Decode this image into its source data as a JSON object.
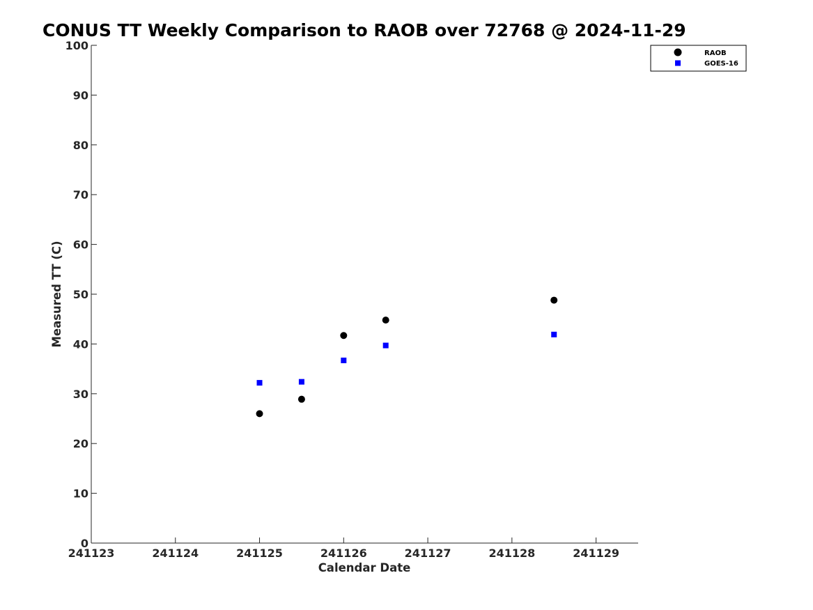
{
  "chart_data": {
    "type": "scatter",
    "title": "CONUS TT Weekly Comparison to RAOB over 72768 @ 2024-11-29",
    "xlabel": "Calendar Date",
    "ylabel": "Measured TT (C)",
    "x_ticks": [
      "241123",
      "241124",
      "241125",
      "241126",
      "241127",
      "241128",
      "241129"
    ],
    "x_tick_values": [
      0,
      1,
      2,
      3,
      4,
      5,
      6
    ],
    "xlim": [
      0,
      6.5
    ],
    "y_ticks": [
      "0",
      "10",
      "20",
      "30",
      "40",
      "50",
      "60",
      "70",
      "80",
      "90",
      "100"
    ],
    "y_tick_values": [
      0,
      10,
      20,
      30,
      40,
      50,
      60,
      70,
      80,
      90,
      100
    ],
    "ylim": [
      0,
      100
    ],
    "grid": false,
    "legend_position": "top-right",
    "series": [
      {
        "name": "RAOB",
        "marker": "circle",
        "color": "#000000",
        "x": [
          2.0,
          2.5,
          3.0,
          3.5,
          5.5
        ],
        "y": [
          26.0,
          28.9,
          41.7,
          44.8,
          48.8
        ]
      },
      {
        "name": "GOES-16",
        "marker": "square",
        "color": "#0000ff",
        "x": [
          2.0,
          2.5,
          3.0,
          3.5,
          5.5
        ],
        "y": [
          32.2,
          32.4,
          36.7,
          39.7,
          41.9
        ]
      }
    ]
  }
}
